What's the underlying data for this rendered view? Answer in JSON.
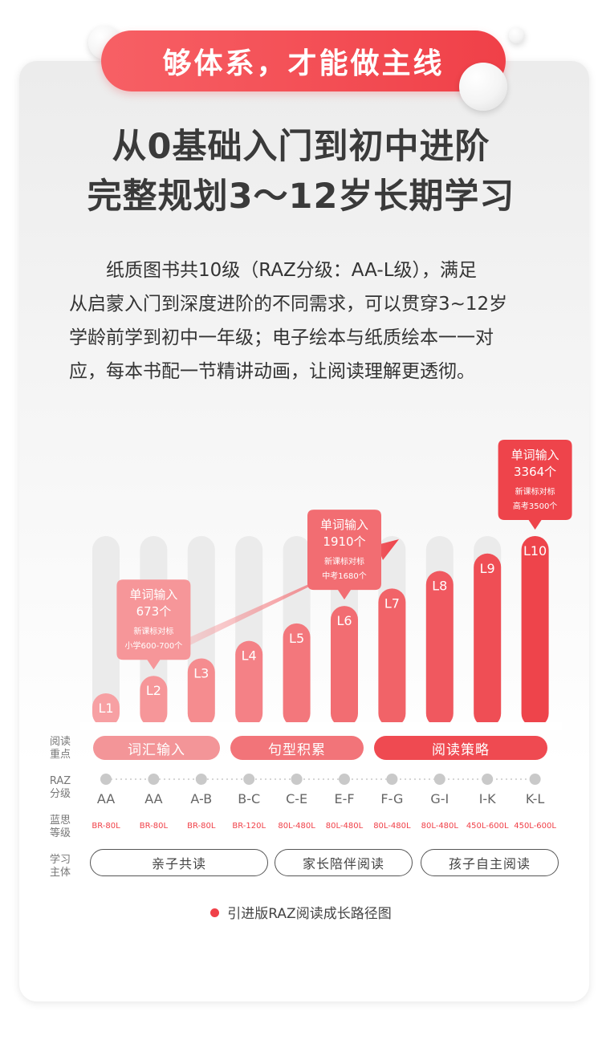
{
  "banner": "够体系，才能做主线",
  "headline": [
    "从0基础入门到初中进阶",
    "完整规划3～12岁长期学习"
  ],
  "description": [
    "纸质图书共10级（RAZ分级：AA-L级），满足",
    "从启蒙入门到深度进阶的不同需求，可以贯穿3~12岁",
    "学龄前学到初中一年级；电子绘本与纸质绘本一一对",
    "应，每本书配一节精讲动画，让阅读理解更透彻。"
  ],
  "row_labels": {
    "focus": [
      "阅读",
      "重点"
    ],
    "raz": [
      "RAZ",
      "分级"
    ],
    "lexile": [
      "蓝思",
      "等级"
    ],
    "subject": [
      "学习",
      "主体"
    ]
  },
  "chart_data": {
    "type": "bar",
    "categories": [
      "L1",
      "L2",
      "L3",
      "L4",
      "L5",
      "L6",
      "L7",
      "L8",
      "L9",
      "L10"
    ],
    "values": [
      1,
      2,
      3,
      4,
      5,
      6,
      7,
      8,
      9,
      10
    ],
    "raz_grades": [
      "AA",
      "AA",
      "A-B",
      "B-C",
      "C-E",
      "E-F",
      "F-G",
      "G-I",
      "I-K",
      "K-L"
    ],
    "lexile": [
      "BR-80L",
      "BR-80L",
      "BR-80L",
      "BR-120L",
      "80L-480L",
      "80L-480L",
      "80L-480L",
      "80L-480L",
      "450L-600L",
      "450L-600L"
    ],
    "callouts": [
      {
        "level": "L2",
        "lines": [
          "单词输入",
          "673个",
          "新课标对标",
          "小学600-700个"
        ]
      },
      {
        "level": "L6",
        "lines": [
          "单词输入",
          "1910个",
          "新课标对标",
          "中考1680个"
        ]
      },
      {
        "level": "L10",
        "lines": [
          "单词输入",
          "3364个",
          "新课标对标",
          "高考3500个"
        ]
      }
    ],
    "colors": {
      "light": "#f7a0a3",
      "mid": "#f27a7f",
      "dark": "#ee454c",
      "track": "#ebebeb"
    }
  },
  "focus_stages": [
    {
      "label": "词汇输入",
      "color": "#f39598"
    },
    {
      "label": "句型积累",
      "color": "#f27479"
    },
    {
      "label": "阅读策略",
      "color": "#ef4a51"
    }
  ],
  "subjects": [
    "亲子共读",
    "家长陪伴阅读",
    "孩子自主阅读"
  ],
  "caption": "引进版RAZ阅读成长路径图"
}
